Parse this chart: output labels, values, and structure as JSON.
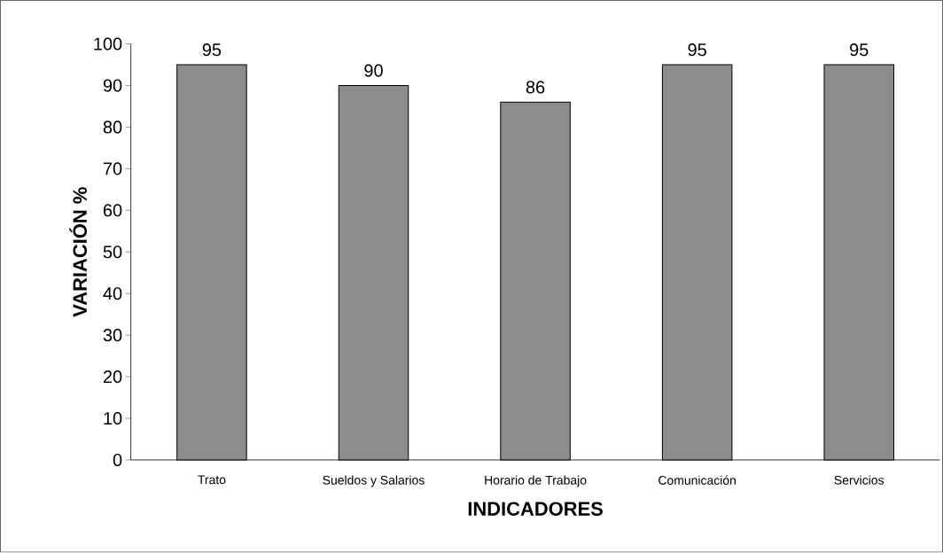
{
  "chart_data": {
    "type": "bar",
    "xlabel": "INDICADORES",
    "ylabel": "VARIACIÓN %",
    "categories": [
      "Trato",
      "Sueldos y Salarios",
      "Horario de Trabajo",
      "Comunicación",
      "Servicios"
    ],
    "values": [
      95,
      90,
      86,
      95,
      95
    ],
    "color": "#8c8c8c",
    "ylim": [
      0,
      100
    ],
    "yticks": [
      0,
      10,
      20,
      30,
      40,
      50,
      60,
      70,
      80,
      90,
      100
    ],
    "data_labels": true
  }
}
